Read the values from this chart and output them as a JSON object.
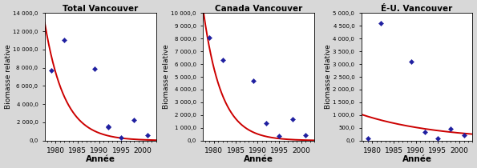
{
  "panels": [
    {
      "title": "Total Vancouver",
      "scatter_x": [
        1979,
        1982,
        1989,
        1992,
        1992,
        1995,
        1998,
        2001
      ],
      "scatter_y": [
        7700,
        11000,
        7900,
        1600,
        1500,
        350,
        2300,
        600
      ],
      "curve_a": 11600,
      "curve_b": 0.22,
      "curve_x0": 1978,
      "ylim": [
        0,
        14000
      ],
      "yticks": [
        0,
        2000,
        4000,
        6000,
        8000,
        10000,
        12000,
        14000
      ],
      "ytick_labels": [
        "0,0",
        "2 000,0",
        "4 000,0",
        "6 000,0",
        "8 000,0",
        "10 000,0",
        "12 000,0",
        "14 000,0"
      ]
    },
    {
      "title": "Canada Vancouver",
      "scatter_x": [
        1979,
        1982,
        1989,
        1992,
        1995,
        1998,
        2001
      ],
      "scatter_y": [
        8100,
        6300,
        4700,
        1350,
        350,
        1700,
        400
      ],
      "curve_a": 9200,
      "curve_b": 0.24,
      "curve_x0": 1978,
      "ylim": [
        0,
        10000
      ],
      "yticks": [
        0,
        1000,
        2000,
        3000,
        4000,
        5000,
        6000,
        7000,
        8000,
        9000,
        10000
      ],
      "ytick_labels": [
        "0,0",
        "1 000,0",
        "2 000,0",
        "3 000,0",
        "4 000,0",
        "5 000,0",
        "6 000,0",
        "7 000,0",
        "8 000,0",
        "9 000,0",
        "10 000,0"
      ]
    },
    {
      "title": "É-U. Vancouver",
      "scatter_x": [
        1979,
        1982,
        1989,
        1992,
        1995,
        1998,
        2001
      ],
      "scatter_y": [
        100,
        4600,
        3100,
        350,
        100,
        450,
        200
      ],
      "curve_a": 1000,
      "curve_b": 0.055,
      "curve_x0": 1978,
      "ylim": [
        0,
        5000
      ],
      "yticks": [
        0,
        500,
        1000,
        1500,
        2000,
        2500,
        3000,
        3500,
        4000,
        4500,
        5000
      ],
      "ytick_labels": [
        "0,0",
        "500,0",
        "1 000,0",
        "1 500,0",
        "2 000,0",
        "2 500,0",
        "3 000,0",
        "3 500,0",
        "4 000,0",
        "4 500,0",
        "5 000,0"
      ]
    }
  ],
  "scatter_color": "#1F1FA0",
  "curve_color": "#CC0000",
  "bg_color": "#FFFFFF",
  "outer_bg": "#D8D8D8",
  "xlabel": "Année",
  "ylabel": "Biomasse relative",
  "xticks": [
    1980,
    1985,
    1990,
    1995,
    2000
  ],
  "xlim": [
    1977.5,
    2003
  ]
}
